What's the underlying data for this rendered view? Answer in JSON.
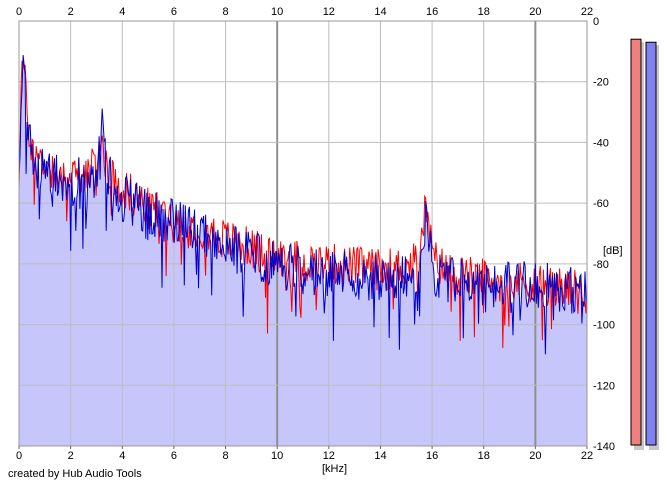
{
  "credit": "created by Hub Audio Tools",
  "chart_data": {
    "type": "area",
    "title": "",
    "xlabel": "[kHz]",
    "ylabel": "[dB]",
    "xlim": [
      0,
      22
    ],
    "ylim": [
      -140,
      0
    ],
    "x_ticks": [
      0,
      2,
      4,
      6,
      8,
      10,
      12,
      14,
      16,
      18,
      20,
      22
    ],
    "y_ticks": [
      0,
      -20,
      -40,
      -60,
      -80,
      -100,
      -120,
      -140
    ],
    "y_tick_labels": [
      "0",
      "-20",
      "-40",
      "-60",
      "-80",
      "-100",
      "-120",
      "-140"
    ],
    "grid": true,
    "colors": {
      "red_channel": "#ff0000",
      "blue_channel": "#0000cc",
      "fill": "#c6c6fb",
      "grid": "#bdbdbd",
      "major_grid": "#8f8f8f"
    },
    "series": [
      {
        "x": [
          0,
          0.1,
          0.2,
          0.3,
          0.5,
          0.7,
          1,
          1.5,
          2,
          2.5,
          3,
          3.2,
          3.5,
          4,
          4.5,
          5,
          5.5,
          6,
          6.5,
          7,
          7.5,
          8,
          9,
          10,
          11,
          12,
          13,
          14,
          15,
          15.5,
          15.8,
          16,
          16.5,
          17,
          18,
          19,
          20,
          21,
          22
        ],
        "values": [
          -52,
          -14,
          -16,
          -30,
          -42,
          -45,
          -47,
          -50,
          -52,
          -50,
          -48,
          -40,
          -50,
          -55,
          -58,
          -62,
          -63,
          -65,
          -67,
          -68,
          -70,
          -72,
          -75,
          -78,
          -79,
          -80,
          -81,
          -82,
          -81,
          -79,
          -58,
          -78,
          -82,
          -84,
          -85,
          -86,
          -86,
          -88,
          -90
        ]
      },
      {
        "x": [
          0,
          0.1,
          0.2,
          0.3,
          0.5,
          0.7,
          1,
          1.5,
          2,
          2.5,
          3,
          3.2,
          3.5,
          4,
          4.5,
          5,
          5.5,
          6,
          6.5,
          7,
          7.5,
          8,
          9,
          10,
          11,
          12,
          13,
          14,
          15,
          15.5,
          15.8,
          16,
          16.5,
          17,
          18,
          19,
          20,
          21,
          22
        ],
        "values": [
          -55,
          -18,
          -20,
          -33,
          -45,
          -48,
          -50,
          -52,
          -54,
          -52,
          -50,
          -32,
          -52,
          -58,
          -60,
          -63,
          -65,
          -67,
          -68,
          -70,
          -72,
          -74,
          -77,
          -80,
          -82,
          -83,
          -84,
          -85,
          -85,
          -84,
          -62,
          -82,
          -85,
          -86,
          -86,
          -87,
          -87,
          -88,
          -90
        ]
      }
    ],
    "peak_levels_db": [
      -6,
      -7
    ]
  }
}
